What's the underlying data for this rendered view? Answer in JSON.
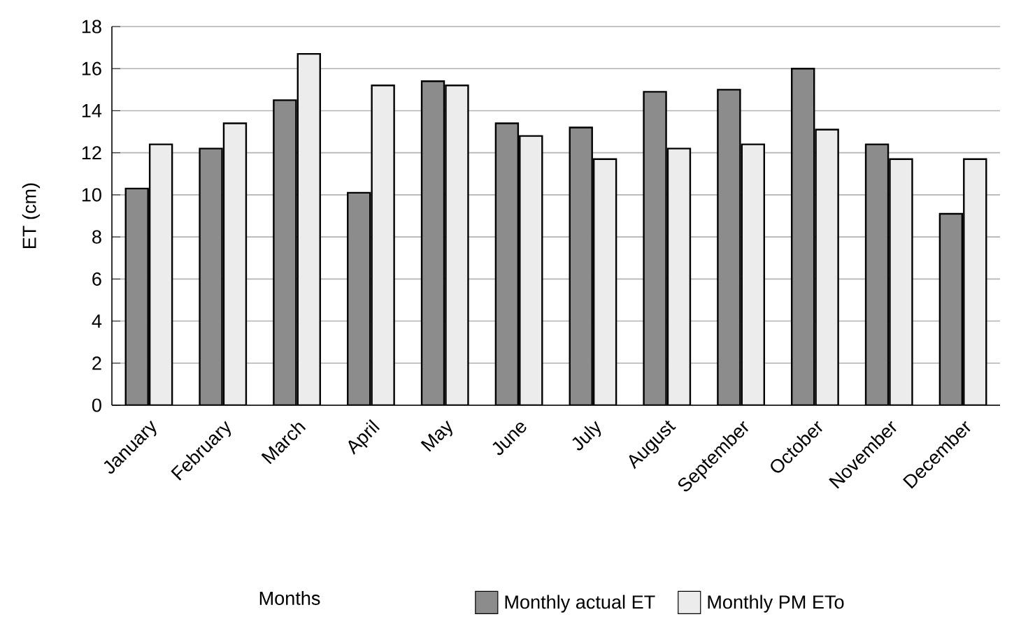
{
  "chart_data": {
    "type": "bar",
    "ylabel": "ET (cm)",
    "annotations": [
      "Months"
    ],
    "categories": [
      "January",
      "February",
      "March",
      "April",
      "May",
      "June",
      "July",
      "August",
      "September",
      "October",
      "November",
      "December"
    ],
    "series": [
      {
        "name": "Monthly actual ET",
        "color": "#8c8c8c",
        "values": [
          10.3,
          12.2,
          14.5,
          10.1,
          15.4,
          13.4,
          13.2,
          14.9,
          15.0,
          16.0,
          12.4,
          9.1
        ]
      },
      {
        "name": "Monthly PM ETo",
        "color": "#ececec",
        "values": [
          12.4,
          13.4,
          16.7,
          15.2,
          15.2,
          12.8,
          11.7,
          12.2,
          12.4,
          13.1,
          11.7,
          11.7
        ]
      }
    ],
    "ylim": [
      0,
      18
    ],
    "yticks": [
      0,
      2,
      4,
      6,
      8,
      10,
      12,
      14,
      16,
      18
    ],
    "grid": "y",
    "legend": "bottom"
  }
}
